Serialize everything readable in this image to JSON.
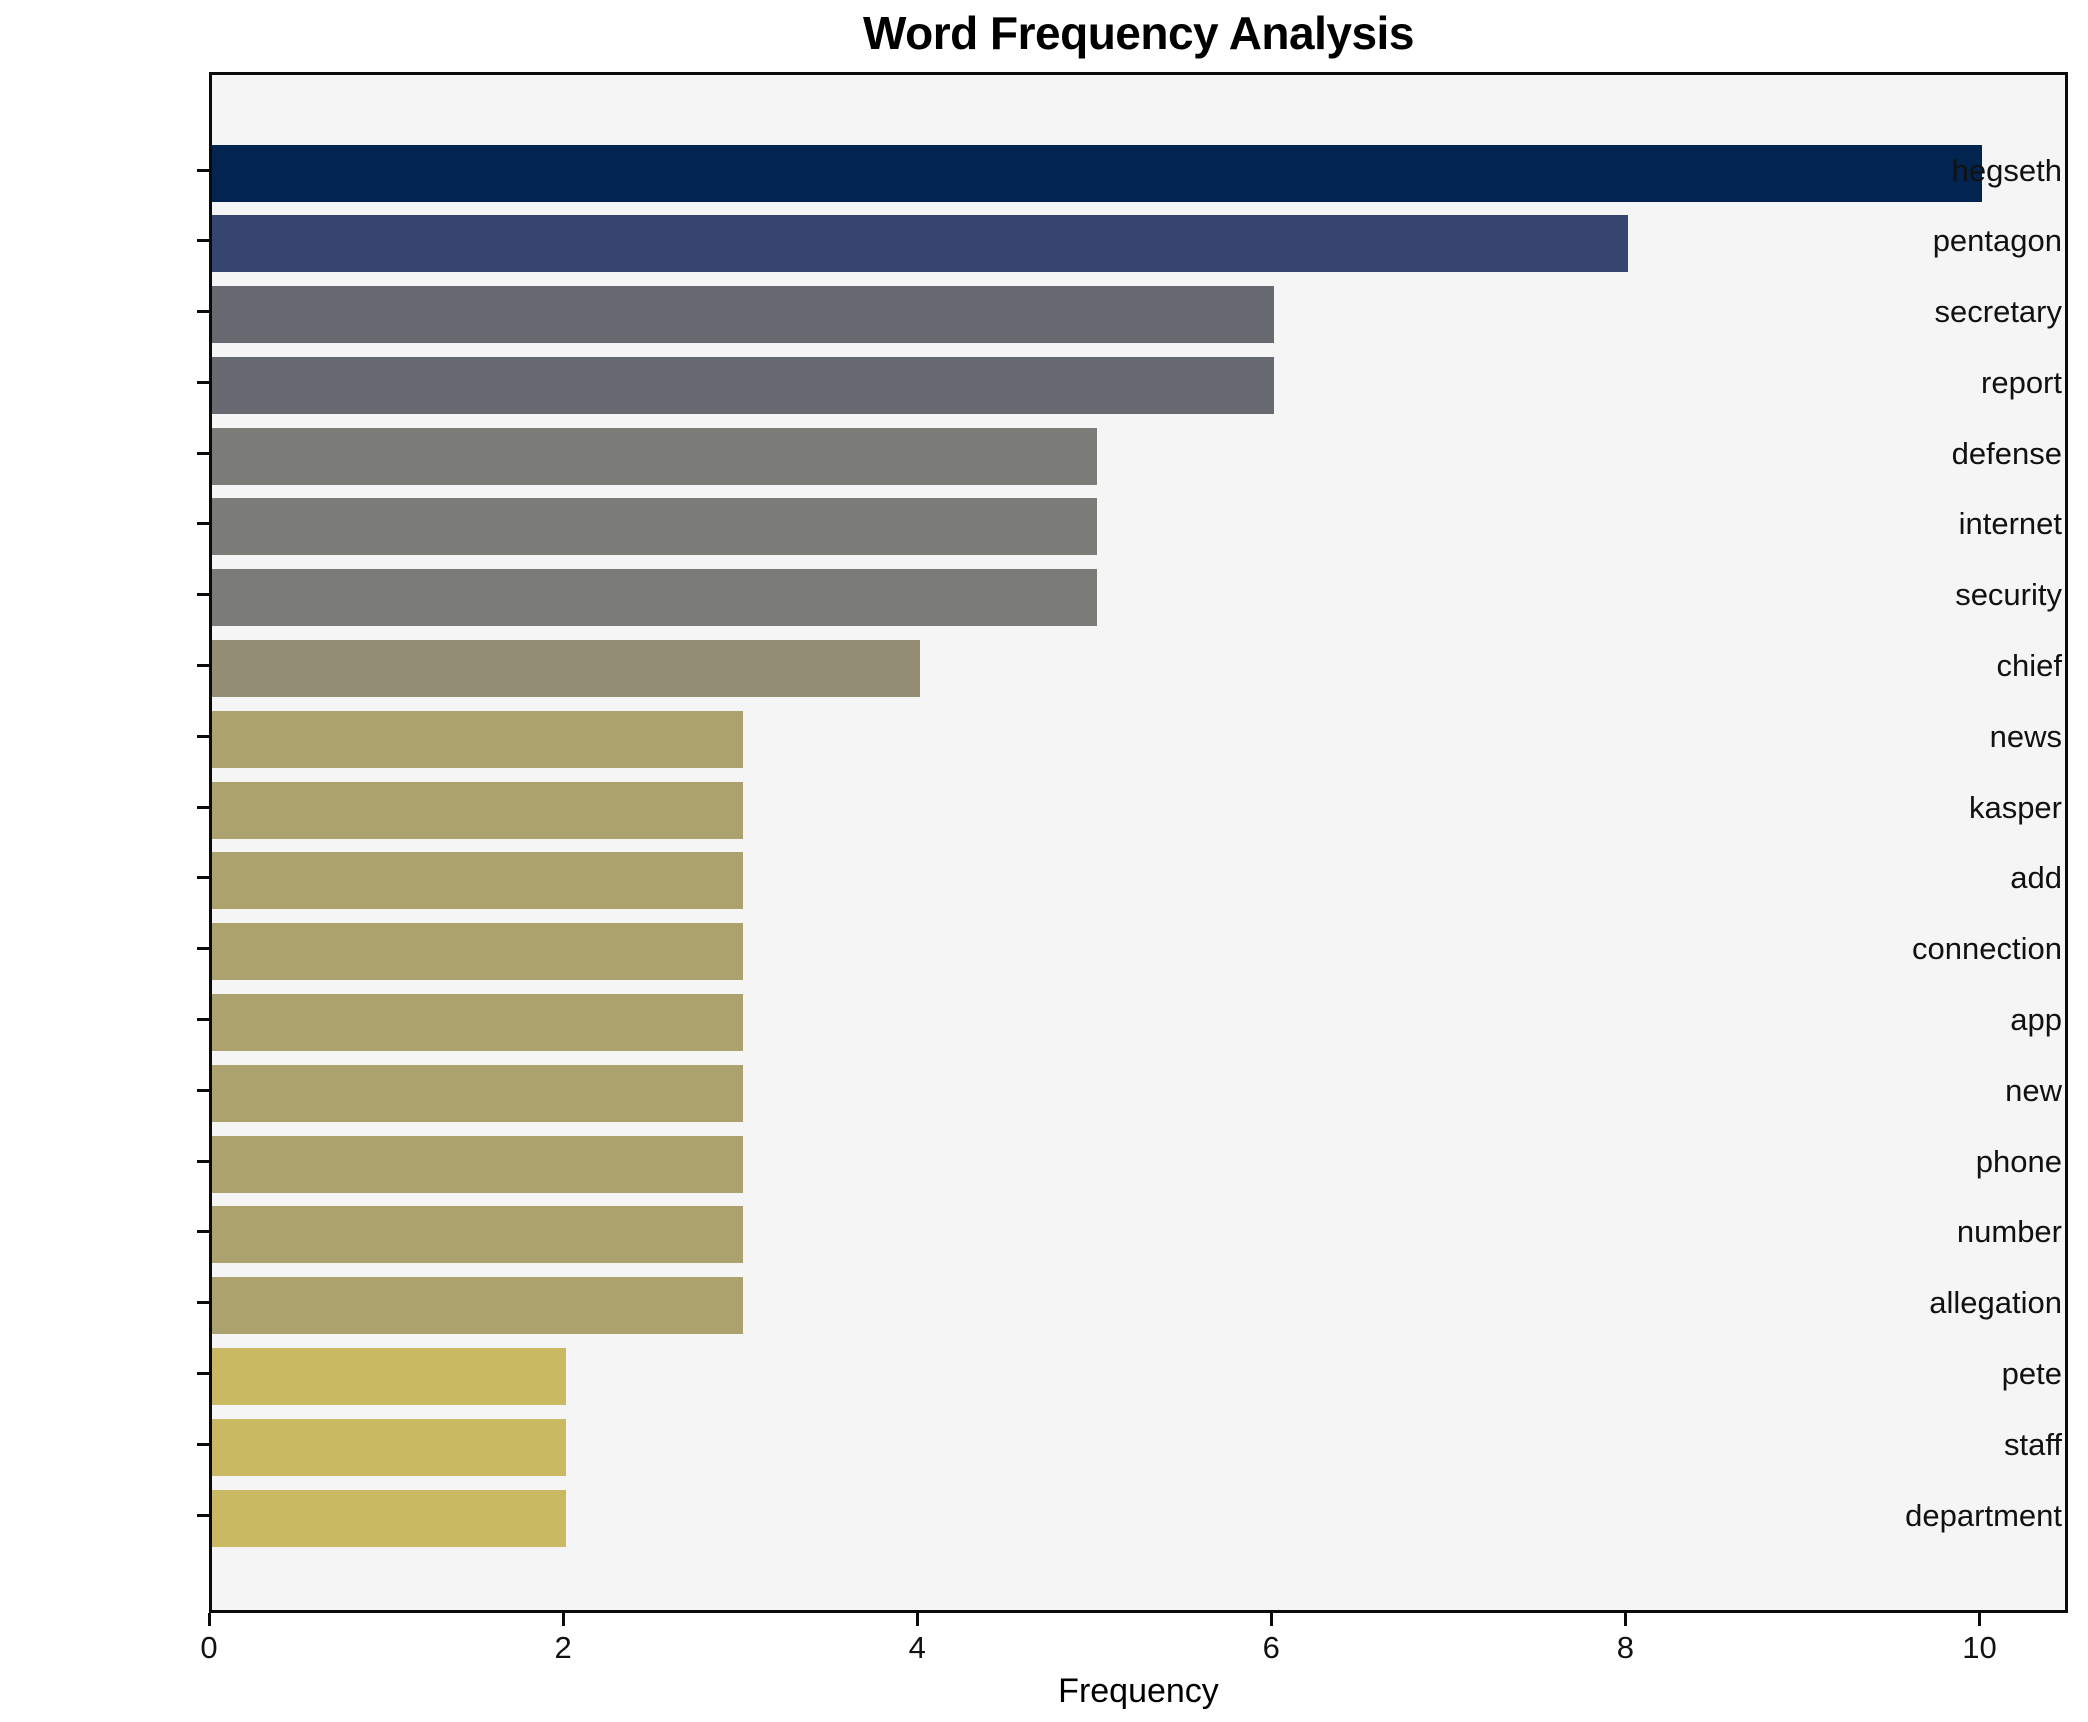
{
  "chart_data": {
    "type": "bar",
    "orientation": "horizontal",
    "title": "Word Frequency Analysis",
    "xlabel": "Frequency",
    "ylabel": "",
    "xlim": [
      0,
      10.5
    ],
    "xticks": [
      0,
      2,
      4,
      6,
      8,
      10
    ],
    "grid": false,
    "legend": "none",
    "figure_bg": "#ffffff",
    "plot_bg": "#f5f5f6",
    "spine_color": "#0a0a0a",
    "categories": [
      "hegseth",
      "pentagon",
      "secretary",
      "report",
      "defense",
      "internet",
      "security",
      "chief",
      "news",
      "kasper",
      "add",
      "connection",
      "app",
      "new",
      "phone",
      "number",
      "allegation",
      "pete",
      "staff",
      "department"
    ],
    "values": [
      10,
      8,
      6,
      6,
      5,
      5,
      5,
      4,
      3,
      3,
      3,
      3,
      3,
      3,
      3,
      3,
      3,
      2,
      2,
      2
    ],
    "bar_colors": [
      "#022450",
      "#364570",
      "#66696f",
      "#66696f",
      "#7b7b77",
      "#7b7b77",
      "#7b7b77",
      "#938e74",
      "#aca26e",
      "#aca26e",
      "#aca26e",
      "#aca26e",
      "#aca26e",
      "#aca26e",
      "#aca26e",
      "#aca26e",
      "#aca26e",
      "#cab963",
      "#cab963",
      "#cab963"
    ]
  }
}
